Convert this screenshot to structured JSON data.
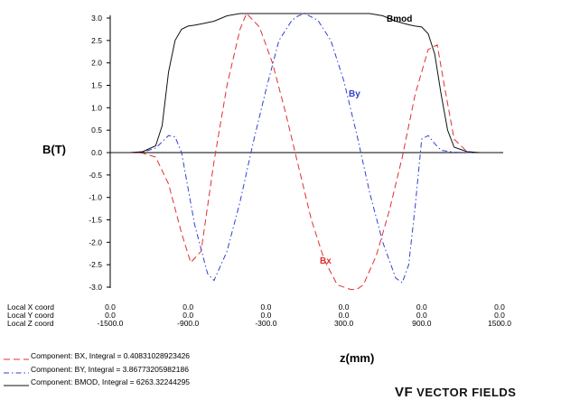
{
  "chart_data": {
    "type": "line",
    "ylabel": "B(T)",
    "xlabel": "z(mm)",
    "ylim": [
      -3.0,
      3.0
    ],
    "xlim": [
      -1500,
      1500
    ],
    "y_ticks": [
      "3.0",
      "2.5",
      "2.0",
      "1.5",
      "1.0",
      "0.5",
      "0.0",
      "-0.5",
      "-1.0",
      "-1.5",
      "-2.0",
      "-2.5",
      "-3.0"
    ],
    "coord_labels": [
      "Local X coord",
      "Local Y coord",
      "Local Z coord"
    ],
    "x_ticks": [
      {
        "x": "0.0",
        "y": "0.0",
        "z": "-1500.0"
      },
      {
        "x": "0.0",
        "y": "0.0",
        "z": "-900.0"
      },
      {
        "x": "0.0",
        "y": "0.0",
        "z": "-300.0"
      },
      {
        "x": "0.0",
        "y": "0.0",
        "z": "300.0"
      },
      {
        "x": "0.0",
        "y": "0.0",
        "z": "900.0"
      },
      {
        "x": "0.0",
        "y": "0.0",
        "z": "1500.0"
      }
    ],
    "series": [
      {
        "name": "Bx",
        "color": "#e03030",
        "dash": "dashed",
        "z": [
          -1500,
          -1350,
          -1250,
          -1150,
          -1050,
          -950,
          -880,
          -800,
          -700,
          -600,
          -500,
          -450,
          -350,
          -250,
          -150,
          -50,
          50,
          150,
          250,
          350,
          400,
          450,
          550,
          650,
          750,
          850,
          950,
          1020,
          1080,
          1150,
          1250,
          1350,
          1500
        ],
        "values": [
          0,
          0,
          -0.01,
          -0.1,
          -0.7,
          -1.8,
          -2.45,
          -2.2,
          -0.2,
          1.5,
          2.75,
          3.1,
          2.8,
          2.0,
          0.9,
          -0.3,
          -1.5,
          -2.4,
          -2.95,
          -3.05,
          -3.05,
          -2.95,
          -2.3,
          -1.3,
          -0.1,
          1.3,
          2.3,
          2.4,
          1.4,
          0.3,
          0.02,
          0,
          0
        ]
      },
      {
        "name": "By",
        "color": "#3040d0",
        "dash": "dashdot",
        "z": [
          -1500,
          -1350,
          -1250,
          -1150,
          -1050,
          -1000,
          -950,
          -850,
          -750,
          -700,
          -600,
          -500,
          -400,
          -300,
          -200,
          -100,
          -50,
          0,
          100,
          200,
          300,
          400,
          500,
          600,
          700,
          750,
          800,
          850,
          900,
          950,
          1000,
          1050,
          1150,
          1250,
          1350,
          1500
        ],
        "values": [
          0,
          0,
          0.01,
          0.1,
          0.38,
          0.35,
          0,
          -1.6,
          -2.7,
          -2.85,
          -2.2,
          -1.1,
          0.2,
          1.4,
          2.5,
          2.95,
          3.05,
          3.1,
          2.95,
          2.5,
          1.6,
          0.4,
          -0.9,
          -2.0,
          -2.8,
          -2.9,
          -2.5,
          -1.2,
          0.3,
          0.38,
          0.2,
          0.05,
          0.01,
          0,
          0,
          0
        ]
      },
      {
        "name": "Bmod",
        "color": "#111111",
        "dash": "solid",
        "z": [
          -1500,
          -1350,
          -1250,
          -1150,
          -1100,
          -1050,
          -1000,
          -950,
          -900,
          -850,
          -800,
          -700,
          -600,
          -500,
          -400,
          -300,
          -200,
          -100,
          0,
          100,
          200,
          300,
          400,
          500,
          600,
          700,
          800,
          850,
          900,
          950,
          1000,
          1050,
          1100,
          1150,
          1250,
          1350,
          1500
        ],
        "values": [
          0,
          0,
          0.02,
          0.15,
          0.6,
          1.8,
          2.5,
          2.75,
          2.82,
          2.84,
          2.87,
          2.93,
          3.05,
          3.1,
          3.1,
          3.1,
          3.1,
          3.1,
          3.1,
          3.1,
          3.1,
          3.1,
          3.1,
          3.1,
          3.05,
          2.93,
          2.85,
          2.82,
          2.8,
          2.65,
          2.2,
          1.3,
          0.5,
          0.12,
          0.02,
          0,
          0
        ]
      }
    ],
    "annotations": [
      "Bmod",
      "By",
      "Bx"
    ],
    "legend": [
      {
        "text": "Component:  BX, Integral = 0.40831028923426",
        "color": "#e03030",
        "dash": "dashed"
      },
      {
        "text": "Component:  BY, Integral = 3.86773205982186",
        "color": "#3040d0",
        "dash": "dashdot"
      },
      {
        "text": "Component:  BMOD, Integral = 6263.32244295",
        "color": "#111111",
        "dash": "solid"
      }
    ],
    "grid": false,
    "legend_position": "bottom-left"
  },
  "logo": {
    "mark": "VF",
    "text": "VECTOR FIELDS"
  }
}
